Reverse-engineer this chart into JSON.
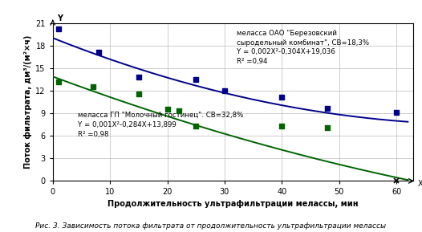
{
  "title_fig": "Рис. 3. Зависимость потока фильтрата от продолжительность ультрафильтрации мелассы",
  "xlabel": "Продолжительность ультрафильтрации мелассы, мин",
  "ylabel": "Поток фильтрата, дм³/(м²×ч)",
  "xlim": [
    0,
    63
  ],
  "ylim": [
    0,
    21
  ],
  "xticks": [
    0,
    10,
    20,
    30,
    40,
    50,
    60
  ],
  "yticks": [
    0,
    3,
    6,
    9,
    12,
    15,
    18,
    21
  ],
  "blue_scatter_x": [
    1,
    8,
    15,
    25,
    30,
    40,
    48,
    60
  ],
  "blue_scatter_y": [
    20.2,
    17.1,
    13.8,
    13.5,
    12.0,
    11.2,
    9.7,
    9.1
  ],
  "green_scatter_x": [
    1,
    7,
    15,
    20,
    22,
    25,
    40,
    48
  ],
  "green_scatter_y": [
    13.2,
    12.5,
    11.6,
    9.6,
    9.3,
    7.3,
    7.3,
    7.1
  ],
  "blue_eq_a": 0.002,
  "blue_eq_b": -0.304,
  "blue_eq_c": 19.036,
  "green_eq_a": 0.001,
  "green_eq_b": -0.284,
  "green_eq_c": 13.899,
  "blue_color": "#00008B",
  "green_color": "#006400",
  "annotation_blue_line1": "меласса ОАО \"Березовский",
  "annotation_blue_line2": "сыродельный комбинат\", СВ=18,3%",
  "annotation_blue_line3": "Y = 0,002X²-0,304X+19,036",
  "annotation_blue_line4": "R² =0,94",
  "annotation_green_line1": "меласса ГП \"Молочный гостинец\". СВ=32,8%",
  "annotation_green_line2": "Y = 0,001X²-0,284X+13,899",
  "annotation_green_line3": "R² =0,98",
  "bg_color": "#ffffff",
  "grid_color": "#bbbbbb",
  "font_color": "#000000",
  "caption_fontsize": 6.5,
  "label_fontsize": 7,
  "tick_fontsize": 7,
  "annot_fontsize": 6.2
}
